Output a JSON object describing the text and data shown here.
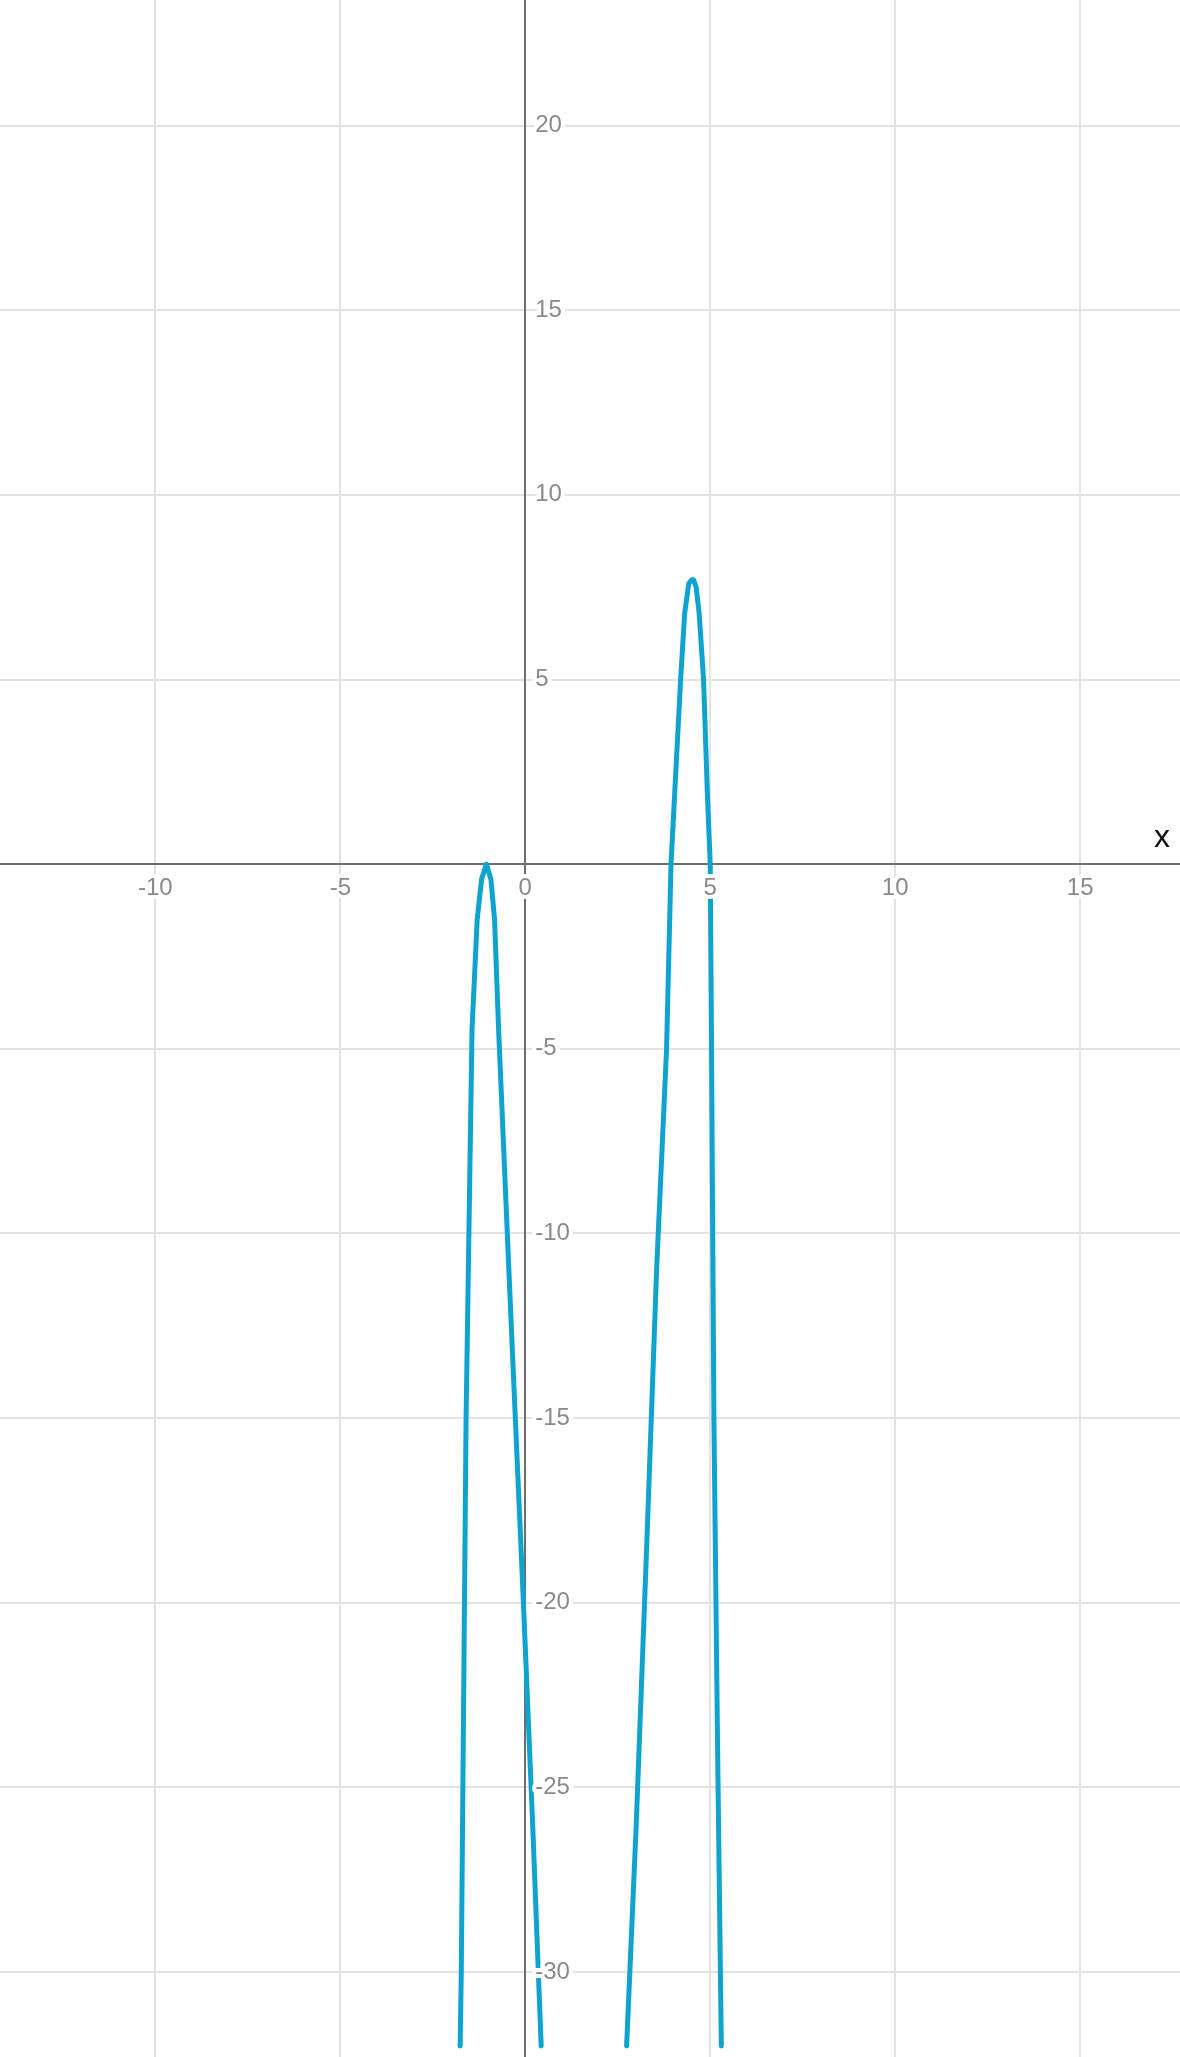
{
  "chart_data": {
    "type": "line",
    "xlabel": "x",
    "xlim": [
      -14.2,
      17.7
    ],
    "ylim": [
      -32.3,
      23.4
    ],
    "xticks": [
      -10,
      -5,
      0,
      5,
      10,
      15
    ],
    "yticks": [
      -30,
      -25,
      -20,
      -15,
      -10,
      -5,
      {
        "value": 0,
        "label": null
      },
      5,
      10,
      15,
      20
    ],
    "grid": true,
    "marker": "none",
    "line_style": "solid",
    "series": [
      {
        "color": "#0fa3cf",
        "x": [
          -1.76,
          -1.73,
          -1.6,
          -1.44,
          -1.3,
          -1.18,
          -1.05,
          -0.93,
          -0.83,
          -0.72,
          -0.4,
          -0.05,
          0.2,
          0.43,
          1.5,
          2.74,
          3.0,
          3.3,
          3.55,
          3.82,
          3.94,
          4.2,
          4.31,
          4.42,
          4.5,
          4.55,
          4.62,
          4.7,
          4.82,
          4.92,
          5.0,
          5.03,
          5.1,
          5.2,
          5.3
        ],
        "values": [
          -32,
          -30,
          -15,
          -4.5,
          -1.5,
          -0.4,
          0,
          -0.4,
          -1.5,
          -4.5,
          -12,
          -20,
          -26,
          -32,
          null,
          -32,
          -26,
          -18,
          -11,
          -5,
          0,
          5,
          6.8,
          7.6,
          7.7,
          7.7,
          7.5,
          6.8,
          5,
          2,
          0,
          -4.2,
          -15,
          -24,
          -32
        ]
      }
    ]
  }
}
